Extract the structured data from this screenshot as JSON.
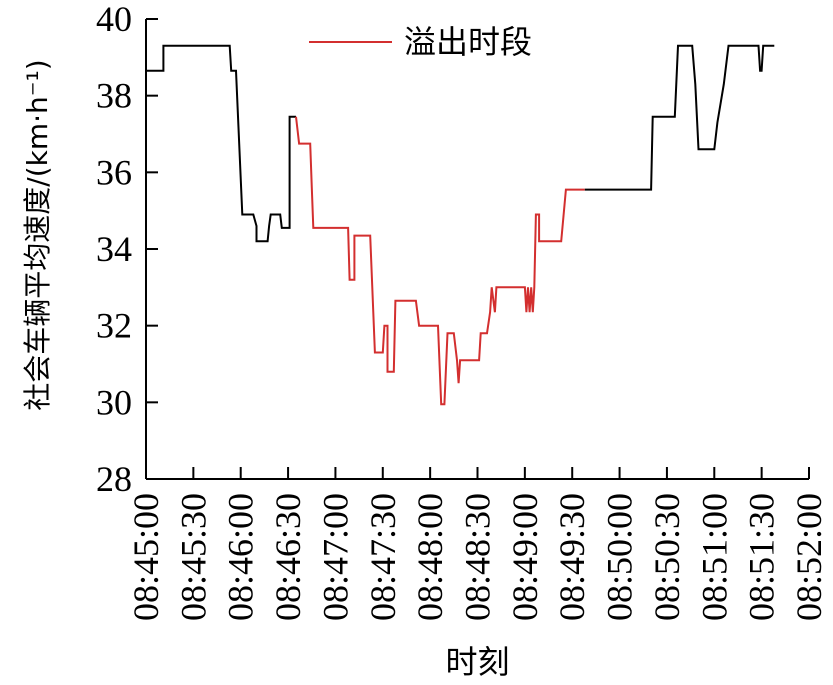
{
  "chart_data": {
    "type": "line",
    "xlabel": "时刻",
    "ylabel": "社会车辆平均速度/(km·h⁻¹)",
    "ylim": [
      28,
      40
    ],
    "yticks": [
      28,
      30,
      32,
      34,
      36,
      38,
      40
    ],
    "xlim": [
      "08:45:00",
      "08:52:00"
    ],
    "xticks": [
      "08:45:00",
      "08:45:30",
      "08:46:00",
      "08:46:30",
      "08:47:00",
      "08:47:30",
      "08:48:00",
      "08:48:30",
      "08:49:00",
      "08:49:30",
      "08:50:00",
      "08:50:30",
      "08:51:00",
      "08:51:30",
      "08:52:00"
    ],
    "legend": {
      "position": "top-center"
    },
    "series": [
      {
        "key": "normal_before",
        "color": "#000000",
        "points": [
          [
            "08:45:00",
            38.65
          ],
          [
            "08:45:11",
            38.65
          ],
          [
            "08:45:11",
            39.3
          ],
          [
            "08:45:53",
            39.3
          ],
          [
            "08:45:54",
            38.65
          ],
          [
            "08:45:57",
            38.65
          ],
          [
            "08:46:01",
            34.9
          ],
          [
            "08:46:08",
            34.9
          ],
          [
            "08:46:10",
            34.6
          ],
          [
            "08:46:10",
            34.2
          ],
          [
            "08:46:17",
            34.2
          ],
          [
            "08:46:18",
            34.6
          ],
          [
            "08:46:19",
            34.9
          ],
          [
            "08:46:25",
            34.9
          ],
          [
            "08:46:26",
            34.55
          ],
          [
            "08:46:31",
            34.55
          ],
          [
            "08:46:31",
            37.45
          ],
          [
            "08:46:35",
            37.45
          ]
        ]
      },
      {
        "key": "overflow",
        "name": "溢出时段",
        "color": "#d32f2f",
        "points": [
          [
            "08:46:35",
            37.45
          ],
          [
            "08:46:37",
            36.75
          ],
          [
            "08:46:44",
            36.75
          ],
          [
            "08:46:45",
            35.6
          ],
          [
            "08:46:46",
            34.55
          ],
          [
            "08:47:08",
            34.55
          ],
          [
            "08:47:09",
            33.2
          ],
          [
            "08:47:12",
            33.2
          ],
          [
            "08:47:12",
            34.35
          ],
          [
            "08:47:22",
            34.35
          ],
          [
            "08:47:25",
            31.3
          ],
          [
            "08:47:30",
            31.3
          ],
          [
            "08:47:31",
            32.0
          ],
          [
            "08:47:33",
            32.0
          ],
          [
            "08:47:33",
            30.8
          ],
          [
            "08:47:37",
            30.8
          ],
          [
            "08:47:38",
            32.65
          ],
          [
            "08:47:51",
            32.65
          ],
          [
            "08:47:53",
            32.0
          ],
          [
            "08:48:05",
            32.0
          ],
          [
            "08:48:07",
            29.95
          ],
          [
            "08:48:09",
            29.95
          ],
          [
            "08:48:11",
            31.8
          ],
          [
            "08:48:15",
            31.8
          ],
          [
            "08:48:17",
            31.1
          ],
          [
            "08:48:18",
            30.5
          ],
          [
            "08:48:19",
            31.1
          ],
          [
            "08:48:31",
            31.1
          ],
          [
            "08:48:32",
            31.8
          ],
          [
            "08:48:36",
            31.8
          ],
          [
            "08:48:38",
            32.35
          ],
          [
            "08:48:39",
            33.0
          ],
          [
            "08:48:41",
            32.35
          ],
          [
            "08:48:42",
            33.0
          ],
          [
            "08:49:00",
            33.0
          ],
          [
            "08:49:01",
            32.35
          ],
          [
            "08:49:02",
            33.0
          ],
          [
            "08:49:03",
            32.35
          ],
          [
            "08:49:04",
            33.0
          ],
          [
            "08:49:05",
            32.35
          ],
          [
            "08:49:06",
            33.0
          ],
          [
            "08:49:07",
            34.9
          ],
          [
            "08:49:09",
            34.9
          ],
          [
            "08:49:09",
            34.2
          ],
          [
            "08:49:23",
            34.2
          ],
          [
            "08:49:26",
            35.55
          ],
          [
            "08:49:38",
            35.55
          ]
        ]
      },
      {
        "key": "normal_after",
        "color": "#000000",
        "points": [
          [
            "08:49:38",
            35.55
          ],
          [
            "08:50:20",
            35.55
          ],
          [
            "08:50:21",
            37.45
          ],
          [
            "08:50:35",
            37.45
          ],
          [
            "08:50:37",
            39.3
          ],
          [
            "08:50:46",
            39.3
          ],
          [
            "08:50:48",
            38.3
          ],
          [
            "08:50:50",
            36.6
          ],
          [
            "08:51:00",
            36.6
          ],
          [
            "08:51:02",
            37.3
          ],
          [
            "08:51:06",
            38.3
          ],
          [
            "08:51:09",
            39.3
          ],
          [
            "08:51:28",
            39.3
          ],
          [
            "08:51:29",
            38.65
          ],
          [
            "08:51:30",
            38.65
          ],
          [
            "08:51:31",
            39.3
          ],
          [
            "08:51:38",
            39.3
          ]
        ]
      }
    ]
  }
}
